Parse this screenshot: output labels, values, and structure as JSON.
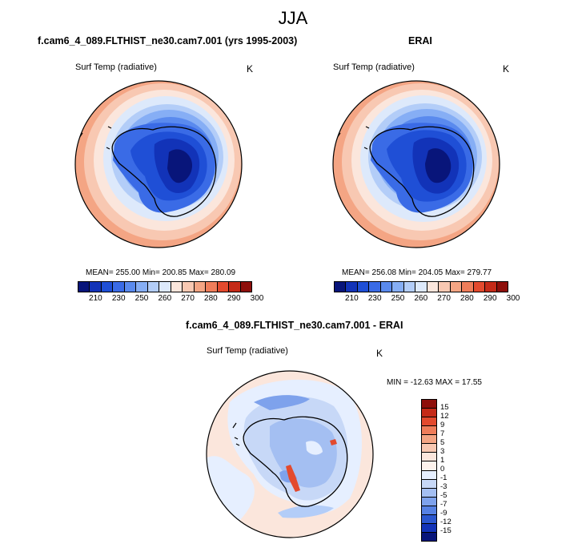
{
  "season": "JJA",
  "panels": [
    {
      "title": "f.cam6_4_089.FLTHIST_ne30.cam7.001 (yrs 1995-2003)",
      "variable": "Surf Temp (radiative)",
      "unit": "K",
      "stats": "MEAN= 255.00  Min= 200.85  Max= 280.09"
    },
    {
      "title": "ERAI",
      "variable": "Surf Temp (radiative)",
      "unit": "K",
      "stats": "MEAN= 256.08  Min= 204.05  Max= 279.77"
    },
    {
      "title": "f.cam6_4_089.FLTHIST_ne30.cam7.001 - ERAI",
      "variable": "Surf Temp (radiative)",
      "unit": "K",
      "stats": "MIN = -12.63 MAX =  17.55"
    }
  ],
  "colorbar_abs": {
    "labels": [
      "210",
      "230",
      "250",
      "260",
      "270",
      "280",
      "290",
      "300"
    ],
    "colors": [
      "#08157a",
      "#1233b8",
      "#1f4fd6",
      "#3a6be6",
      "#5a8aee",
      "#86aef5",
      "#b3cdf8",
      "#dde9fb",
      "#fbe6dc",
      "#f8c8b2",
      "#f4a584",
      "#ef7d5a",
      "#e34a2e",
      "#c52a18",
      "#8e0f0b"
    ]
  },
  "colorbar_diff": {
    "labels": [
      "15",
      "12",
      "9",
      "7",
      "5",
      "3",
      "1",
      "0",
      "-1",
      "-3",
      "-5",
      "-7",
      "-9",
      "-12",
      "-15"
    ],
    "colors": [
      "#8e0f0b",
      "#c52a18",
      "#e34a2e",
      "#ef7d5a",
      "#f4a584",
      "#f8c8b2",
      "#fbe6dc",
      "#fdf2ec",
      "#e6efff",
      "#c7d8f7",
      "#a4bff2",
      "#7ea2ec",
      "#5681e3",
      "#2b57cf",
      "#1233b8",
      "#08157a"
    ]
  }
}
